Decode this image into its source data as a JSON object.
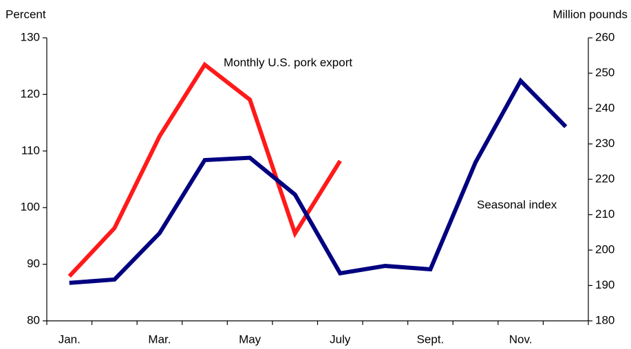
{
  "chart_data": {
    "type": "line",
    "y_label": "Percent",
    "y2_label": "Million pounds",
    "categories": [
      "Jan.",
      null,
      "Mar.",
      null,
      "May",
      null,
      "July",
      null,
      "Sept.",
      null,
      "Nov.",
      null
    ],
    "series": [
      {
        "name": "Monthly U.S. pork export",
        "color": "#ff1a1a",
        "axis": "y2",
        "values": [
          192.6,
          206.2,
          232.2,
          252.4,
          242.5,
          204.7,
          225.2,
          null,
          null,
          null,
          null,
          null
        ]
      },
      {
        "name": "Seasonal index",
        "color": "#000080",
        "values": [
          86.7,
          87.3,
          95.5,
          108.4,
          108.8,
          102.3,
          88.4,
          89.7,
          89.1,
          108.0,
          122.4,
          114.3
        ]
      }
    ],
    "ylim": [
      80,
      130
    ],
    "yticks": [
      80,
      90,
      100,
      110,
      120,
      130
    ],
    "y2lim": [
      180,
      260
    ],
    "y2ticks": [
      180,
      190,
      200,
      210,
      220,
      230,
      240,
      250,
      260
    ]
  }
}
